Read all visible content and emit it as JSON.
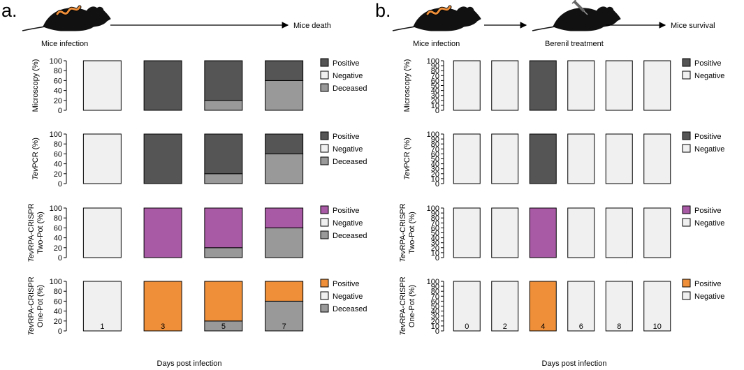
{
  "panels": [
    {
      "letter": "a.",
      "header": {
        "left_label": "Mice infection",
        "right_label": "Mice death"
      },
      "xlabel": "Days post infection"
    },
    {
      "letter": "b.",
      "header": {
        "left_label": "Mice infection",
        "middle_label": "Berenil treatment",
        "right_label": "Mice survival"
      },
      "xlabel": "Days post infection"
    }
  ],
  "colors": {
    "negative": "#f0f0f0",
    "positive_dark": "#555555",
    "positive_purple": "#a85aa5",
    "positive_orange": "#ef8f3a",
    "deceased": "#999999",
    "mouse": "#111111",
    "parasite": "#ef8f3a"
  },
  "chart_data": [
    {
      "panel": "a",
      "type": "bar",
      "stacked": true,
      "ylabel": [
        "Microscopy (%)"
      ],
      "categories": [
        "1",
        "3",
        "5",
        "7"
      ],
      "ylim": [
        0,
        100
      ],
      "yticks": [
        "0",
        "20",
        "40",
        "60",
        "80",
        "100"
      ],
      "series": [
        {
          "name": "Deceased",
          "color": "#999999",
          "values": [
            0,
            0,
            20,
            60
          ]
        },
        {
          "name": "Negative",
          "color": "#f0f0f0",
          "values": [
            100,
            0,
            0,
            0
          ]
        },
        {
          "name": "Positive",
          "color": "#555555",
          "values": [
            0,
            100,
            80,
            40
          ]
        }
      ],
      "legend": [
        "Positive",
        "Negative",
        "Deceased"
      ]
    },
    {
      "panel": "a",
      "type": "bar",
      "stacked": true,
      "ylabel": [
        "TevPCR (%)"
      ],
      "categories": [
        "1",
        "3",
        "5",
        "7"
      ],
      "ylim": [
        0,
        100
      ],
      "yticks": [
        "0",
        "20",
        "40",
        "60",
        "80",
        "100"
      ],
      "series": [
        {
          "name": "Deceased",
          "color": "#999999",
          "values": [
            0,
            0,
            20,
            60
          ]
        },
        {
          "name": "Negative",
          "color": "#f0f0f0",
          "values": [
            100,
            0,
            0,
            0
          ]
        },
        {
          "name": "Positive",
          "color": "#555555",
          "values": [
            0,
            100,
            80,
            40
          ]
        }
      ],
      "legend": [
        "Positive",
        "Negative",
        "Deceased"
      ]
    },
    {
      "panel": "a",
      "type": "bar",
      "stacked": true,
      "ylabel": [
        "TevRPA-CRISPR",
        "Two-Pot (%)"
      ],
      "categories": [
        "1",
        "3",
        "5",
        "7"
      ],
      "ylim": [
        0,
        100
      ],
      "yticks": [
        "0",
        "20",
        "40",
        "60",
        "80",
        "100"
      ],
      "series": [
        {
          "name": "Deceased",
          "color": "#999999",
          "values": [
            0,
            0,
            20,
            60
          ]
        },
        {
          "name": "Negative",
          "color": "#f0f0f0",
          "values": [
            100,
            0,
            0,
            0
          ]
        },
        {
          "name": "Positive",
          "color": "#a85aa5",
          "values": [
            0,
            100,
            80,
            40
          ]
        }
      ],
      "legend": [
        "Positive",
        "Negative",
        "Deceased"
      ]
    },
    {
      "panel": "a",
      "type": "bar",
      "stacked": true,
      "ylabel": [
        "TevRPA-CRISPR",
        "One-Pot (%)"
      ],
      "categories": [
        "1",
        "3",
        "5",
        "7"
      ],
      "ylim": [
        0,
        100
      ],
      "yticks": [
        "0",
        "20",
        "40",
        "60",
        "80",
        "100"
      ],
      "series": [
        {
          "name": "Deceased",
          "color": "#999999",
          "values": [
            0,
            0,
            20,
            60
          ]
        },
        {
          "name": "Negative",
          "color": "#f0f0f0",
          "values": [
            100,
            0,
            0,
            0
          ]
        },
        {
          "name": "Positive",
          "color": "#ef8f3a",
          "values": [
            0,
            100,
            80,
            40
          ]
        }
      ],
      "legend": [
        "Positive",
        "Negative",
        "Deceased"
      ],
      "show_xticks": true
    },
    {
      "panel": "b",
      "type": "bar",
      "stacked": true,
      "ylabel": [
        "Microscopy (%)"
      ],
      "categories": [
        "0",
        "2",
        "4",
        "6",
        "8",
        "10"
      ],
      "ylim": [
        0,
        100
      ],
      "yticks": [
        "0",
        "10",
        "20",
        "30",
        "40",
        "50",
        "60",
        "70",
        "80",
        "90",
        "100"
      ],
      "series": [
        {
          "name": "Negative",
          "color": "#f0f0f0",
          "values": [
            100,
            100,
            0,
            100,
            100,
            100
          ]
        },
        {
          "name": "Positive",
          "color": "#555555",
          "values": [
            0,
            0,
            100,
            0,
            0,
            0
          ]
        }
      ],
      "legend": [
        "Positive",
        "Negative"
      ]
    },
    {
      "panel": "b",
      "type": "bar",
      "stacked": true,
      "ylabel": [
        "TevPCR (%)"
      ],
      "categories": [
        "0",
        "2",
        "4",
        "6",
        "8",
        "10"
      ],
      "ylim": [
        0,
        100
      ],
      "yticks": [
        "0",
        "10",
        "20",
        "30",
        "40",
        "50",
        "60",
        "70",
        "80",
        "90",
        "100"
      ],
      "series": [
        {
          "name": "Negative",
          "color": "#f0f0f0",
          "values": [
            100,
            100,
            0,
            100,
            100,
            100
          ]
        },
        {
          "name": "Positive",
          "color": "#555555",
          "values": [
            0,
            0,
            100,
            0,
            0,
            0
          ]
        }
      ],
      "legend": [
        "Positive",
        "Negative"
      ]
    },
    {
      "panel": "b",
      "type": "bar",
      "stacked": true,
      "ylabel": [
        "TevRPA-CRISPR",
        "Two-Pot (%)"
      ],
      "categories": [
        "0",
        "2",
        "4",
        "6",
        "8",
        "10"
      ],
      "ylim": [
        0,
        100
      ],
      "yticks": [
        "0",
        "10",
        "20",
        "30",
        "40",
        "50",
        "60",
        "70",
        "80",
        "90",
        "100"
      ],
      "series": [
        {
          "name": "Negative",
          "color": "#f0f0f0",
          "values": [
            100,
            100,
            0,
            100,
            100,
            100
          ]
        },
        {
          "name": "Positive",
          "color": "#a85aa5",
          "values": [
            0,
            0,
            100,
            0,
            0,
            0
          ]
        }
      ],
      "legend": [
        "Positive",
        "Negative"
      ]
    },
    {
      "panel": "b",
      "type": "bar",
      "stacked": true,
      "ylabel": [
        "TevRPA-CRISPR",
        "One-Pot (%)"
      ],
      "categories": [
        "0",
        "2",
        "4",
        "6",
        "8",
        "10"
      ],
      "ylim": [
        0,
        100
      ],
      "yticks": [
        "0",
        "10",
        "20",
        "30",
        "40",
        "50",
        "60",
        "70",
        "80",
        "90",
        "100"
      ],
      "series": [
        {
          "name": "Negative",
          "color": "#f0f0f0",
          "values": [
            100,
            100,
            0,
            100,
            100,
            100
          ]
        },
        {
          "name": "Positive",
          "color": "#ef8f3a",
          "values": [
            0,
            0,
            100,
            0,
            0,
            0
          ]
        }
      ],
      "legend": [
        "Positive",
        "Negative"
      ],
      "show_xticks": true
    }
  ]
}
